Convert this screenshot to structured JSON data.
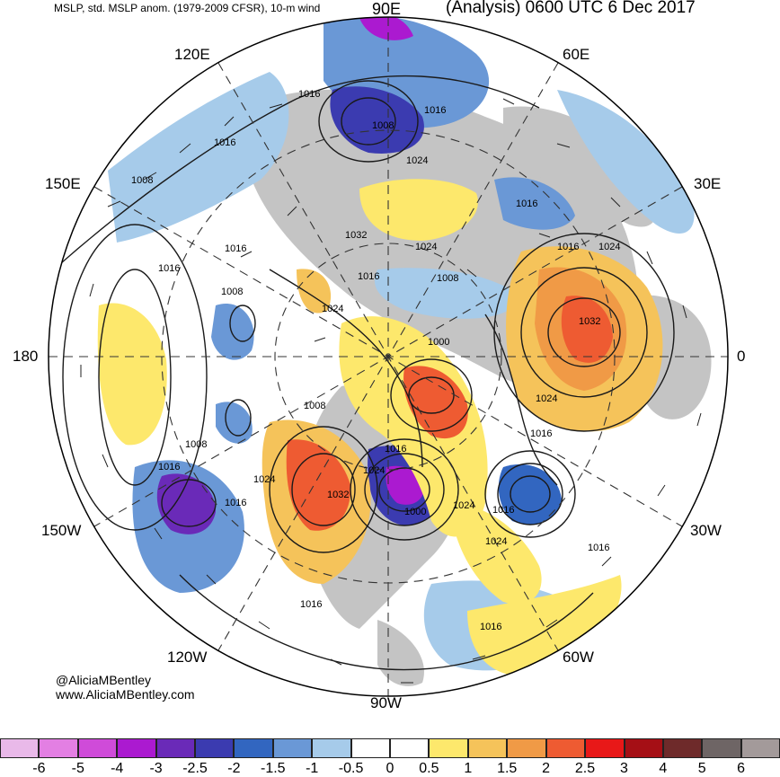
{
  "header": {
    "left_title": "MSLP, std. MSLP anom. (1979-2009 CFSR), 10-m wind",
    "right_title": "(Analysis) 0600 UTC 6 Dec 2017"
  },
  "longitude_labels": {
    "lon_90e": "90E",
    "lon_120e": "120E",
    "lon_60e": "60E",
    "lon_150e": "150E",
    "lon_30e": "30E",
    "lon_180": "180",
    "lon_0": "0",
    "lon_150w": "150W",
    "lon_30w": "30W",
    "lon_120w": "120W",
    "lon_60w": "60W",
    "lon_90w": "90W"
  },
  "credits": {
    "twitter": "@AliciaMBentley",
    "website": "www.AliciaMBentley.com"
  },
  "isobar_labels": [
    "1016",
    "1008",
    "1016",
    "1016",
    "1008",
    "1024",
    "1016",
    "1032",
    "1024",
    "1016",
    "1008",
    "1024",
    "1000",
    "1016",
    "1016",
    "1008",
    "1024",
    "1008",
    "1008",
    "1016",
    "1024",
    "1032",
    "1024",
    "1016",
    "1024",
    "1016",
    "1016",
    "1032",
    "1000",
    "1024",
    "1016",
    "1016",
    "1024",
    "1016",
    "1016",
    "1016"
  ],
  "colorbar": {
    "labels": [
      "-6",
      "-5",
      "-4",
      "-3",
      "-2.5",
      "-2",
      "-1.5",
      "-1",
      "-0.5",
      "0",
      "0.5",
      "1",
      "1.5",
      "2",
      "2.5",
      "3",
      "4",
      "5",
      "6"
    ],
    "colors": [
      "#e9b9e9",
      "#e37fe3",
      "#cf4bd9",
      "#ab1ad0",
      "#6a2ab8",
      "#3b3bb0",
      "#3266c0",
      "#6a98d6",
      "#a6cbea",
      "#ffffff",
      "#ffffff",
      "#fde86c",
      "#f5c35a",
      "#f09a46",
      "#ee5b32",
      "#e81818",
      "#a50f15",
      "#6e2a2a",
      "#6e6565",
      "#a39a9a"
    ]
  },
  "map_colors": {
    "land": "#bfbfbf",
    "ocean": "#ffffff",
    "positive_anomaly": "#fde86c",
    "strong_positive": "#ee5b32",
    "negative_anomaly": "#a6cbea",
    "strong_negative": "#3b3bb0"
  }
}
